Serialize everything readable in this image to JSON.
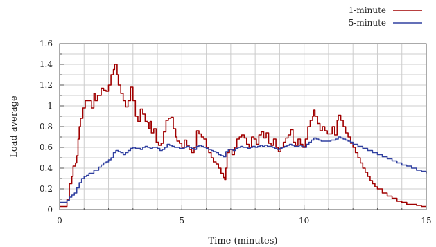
{
  "chart_data": {
    "type": "line",
    "title": "",
    "xlabel": "Time (minutes)",
    "ylabel": "Load average",
    "xlim": [
      0,
      15
    ],
    "ylim": [
      0,
      1.6
    ],
    "xticks": [
      0,
      5,
      10,
      15
    ],
    "xtick_labels": [
      "0",
      "5",
      "10",
      "15"
    ],
    "yticks": [
      0,
      0.2,
      0.4,
      0.6,
      0.8,
      1.0,
      1.2,
      1.4,
      1.6
    ],
    "ytick_labels": [
      "0",
      "0.2",
      "0.4",
      "0.6",
      "0.8",
      "1",
      "1.2",
      "1.4",
      "1.6"
    ],
    "minor_x_step": 1,
    "minor_y_step": 0.1,
    "grid": true,
    "legend_position": "top-right",
    "series": [
      {
        "name": "1-minute",
        "color": "#a00000",
        "points": [
          [
            0.0,
            0.03
          ],
          [
            0.25,
            0.03
          ],
          [
            0.3,
            0.1
          ],
          [
            0.4,
            0.25
          ],
          [
            0.5,
            0.32
          ],
          [
            0.55,
            0.42
          ],
          [
            0.65,
            0.45
          ],
          [
            0.7,
            0.52
          ],
          [
            0.75,
            0.68
          ],
          [
            0.8,
            0.8
          ],
          [
            0.85,
            0.88
          ],
          [
            0.95,
            0.98
          ],
          [
            1.05,
            1.05
          ],
          [
            1.25,
            1.05
          ],
          [
            1.3,
            0.98
          ],
          [
            1.4,
            1.12
          ],
          [
            1.45,
            1.05
          ],
          [
            1.55,
            1.1
          ],
          [
            1.65,
            1.1
          ],
          [
            1.7,
            1.17
          ],
          [
            1.8,
            1.15
          ],
          [
            1.9,
            1.14
          ],
          [
            2.0,
            1.2
          ],
          [
            2.1,
            1.3
          ],
          [
            2.2,
            1.35
          ],
          [
            2.25,
            1.4
          ],
          [
            2.3,
            1.4
          ],
          [
            2.35,
            1.3
          ],
          [
            2.4,
            1.2
          ],
          [
            2.5,
            1.12
          ],
          [
            2.6,
            1.05
          ],
          [
            2.7,
            0.99
          ],
          [
            2.8,
            1.05
          ],
          [
            2.9,
            1.18
          ],
          [
            3.0,
            1.05
          ],
          [
            3.1,
            0.9
          ],
          [
            3.2,
            0.85
          ],
          [
            3.3,
            0.97
          ],
          [
            3.4,
            0.92
          ],
          [
            3.5,
            0.85
          ],
          [
            3.6,
            0.84
          ],
          [
            3.65,
            0.78
          ],
          [
            3.7,
            0.85
          ],
          [
            3.75,
            0.74
          ],
          [
            3.85,
            0.78
          ],
          [
            3.95,
            0.65
          ],
          [
            4.05,
            0.62
          ],
          [
            4.15,
            0.64
          ],
          [
            4.25,
            0.75
          ],
          [
            4.35,
            0.86
          ],
          [
            4.45,
            0.88
          ],
          [
            4.55,
            0.89
          ],
          [
            4.65,
            0.78
          ],
          [
            4.75,
            0.7
          ],
          [
            4.8,
            0.66
          ],
          [
            4.9,
            0.64
          ],
          [
            5.0,
            0.6
          ],
          [
            5.1,
            0.67
          ],
          [
            5.2,
            0.62
          ],
          [
            5.3,
            0.58
          ],
          [
            5.4,
            0.55
          ],
          [
            5.5,
            0.6
          ],
          [
            5.6,
            0.76
          ],
          [
            5.7,
            0.73
          ],
          [
            5.8,
            0.7
          ],
          [
            5.9,
            0.68
          ],
          [
            6.0,
            0.6
          ],
          [
            6.1,
            0.55
          ],
          [
            6.2,
            0.5
          ],
          [
            6.3,
            0.46
          ],
          [
            6.4,
            0.44
          ],
          [
            6.5,
            0.4
          ],
          [
            6.6,
            0.35
          ],
          [
            6.7,
            0.31
          ],
          [
            6.75,
            0.29
          ],
          [
            6.8,
            0.4
          ],
          [
            6.85,
            0.55
          ],
          [
            6.95,
            0.58
          ],
          [
            7.05,
            0.53
          ],
          [
            7.15,
            0.6
          ],
          [
            7.25,
            0.68
          ],
          [
            7.35,
            0.7
          ],
          [
            7.45,
            0.72
          ],
          [
            7.55,
            0.69
          ],
          [
            7.65,
            0.63
          ],
          [
            7.75,
            0.6
          ],
          [
            7.85,
            0.7
          ],
          [
            7.95,
            0.68
          ],
          [
            8.05,
            0.63
          ],
          [
            8.15,
            0.72
          ],
          [
            8.25,
            0.75
          ],
          [
            8.35,
            0.69
          ],
          [
            8.45,
            0.74
          ],
          [
            8.55,
            0.64
          ],
          [
            8.65,
            0.62
          ],
          [
            8.75,
            0.68
          ],
          [
            8.85,
            0.6
          ],
          [
            8.95,
            0.56
          ],
          [
            9.05,
            0.6
          ],
          [
            9.15,
            0.65
          ],
          [
            9.25,
            0.69
          ],
          [
            9.35,
            0.72
          ],
          [
            9.45,
            0.77
          ],
          [
            9.55,
            0.65
          ],
          [
            9.65,
            0.62
          ],
          [
            9.75,
            0.68
          ],
          [
            9.85,
            0.63
          ],
          [
            9.95,
            0.6
          ],
          [
            10.05,
            0.68
          ],
          [
            10.15,
            0.8
          ],
          [
            10.25,
            0.86
          ],
          [
            10.35,
            0.9
          ],
          [
            10.4,
            0.96
          ],
          [
            10.45,
            0.9
          ],
          [
            10.55,
            0.83
          ],
          [
            10.65,
            0.76
          ],
          [
            10.75,
            0.8
          ],
          [
            10.85,
            0.76
          ],
          [
            10.95,
            0.73
          ],
          [
            11.05,
            0.73
          ],
          [
            11.15,
            0.8
          ],
          [
            11.25,
            0.72
          ],
          [
            11.35,
            0.86
          ],
          [
            11.4,
            0.91
          ],
          [
            11.5,
            0.86
          ],
          [
            11.6,
            0.8
          ],
          [
            11.7,
            0.74
          ],
          [
            11.8,
            0.7
          ],
          [
            11.9,
            0.64
          ],
          [
            12.0,
            0.6
          ],
          [
            12.1,
            0.55
          ],
          [
            12.2,
            0.5
          ],
          [
            12.3,
            0.45
          ],
          [
            12.4,
            0.4
          ],
          [
            12.5,
            0.36
          ],
          [
            12.6,
            0.32
          ],
          [
            12.7,
            0.28
          ],
          [
            12.8,
            0.25
          ],
          [
            12.9,
            0.22
          ],
          [
            13.0,
            0.2
          ],
          [
            13.2,
            0.16
          ],
          [
            13.4,
            0.13
          ],
          [
            13.6,
            0.11
          ],
          [
            13.8,
            0.08
          ],
          [
            14.0,
            0.07
          ],
          [
            14.2,
            0.05
          ],
          [
            14.4,
            0.05
          ],
          [
            14.6,
            0.04
          ],
          [
            14.8,
            0.03
          ],
          [
            15.0,
            0.03
          ]
        ]
      },
      {
        "name": "5-minute",
        "color": "#3040a0",
        "points": [
          [
            0.0,
            0.07
          ],
          [
            0.25,
            0.07
          ],
          [
            0.3,
            0.09
          ],
          [
            0.4,
            0.12
          ],
          [
            0.5,
            0.14
          ],
          [
            0.6,
            0.16
          ],
          [
            0.7,
            0.21
          ],
          [
            0.8,
            0.26
          ],
          [
            0.9,
            0.3
          ],
          [
            1.0,
            0.32
          ],
          [
            1.1,
            0.33
          ],
          [
            1.2,
            0.35
          ],
          [
            1.3,
            0.35
          ],
          [
            1.4,
            0.38
          ],
          [
            1.5,
            0.38
          ],
          [
            1.6,
            0.41
          ],
          [
            1.7,
            0.43
          ],
          [
            1.8,
            0.45
          ],
          [
            1.9,
            0.46
          ],
          [
            2.0,
            0.48
          ],
          [
            2.1,
            0.5
          ],
          [
            2.2,
            0.55
          ],
          [
            2.3,
            0.57
          ],
          [
            2.4,
            0.56
          ],
          [
            2.5,
            0.55
          ],
          [
            2.6,
            0.53
          ],
          [
            2.7,
            0.55
          ],
          [
            2.8,
            0.57
          ],
          [
            2.9,
            0.59
          ],
          [
            3.0,
            0.6
          ],
          [
            3.1,
            0.59
          ],
          [
            3.2,
            0.59
          ],
          [
            3.3,
            0.58
          ],
          [
            3.4,
            0.6
          ],
          [
            3.5,
            0.61
          ],
          [
            3.6,
            0.6
          ],
          [
            3.7,
            0.59
          ],
          [
            3.8,
            0.6
          ],
          [
            3.9,
            0.6
          ],
          [
            4.0,
            0.59
          ],
          [
            4.1,
            0.57
          ],
          [
            4.2,
            0.58
          ],
          [
            4.3,
            0.6
          ],
          [
            4.4,
            0.63
          ],
          [
            4.5,
            0.62
          ],
          [
            4.6,
            0.61
          ],
          [
            4.7,
            0.6
          ],
          [
            4.8,
            0.6
          ],
          [
            4.9,
            0.59
          ],
          [
            5.0,
            0.59
          ],
          [
            5.1,
            0.6
          ],
          [
            5.2,
            0.61
          ],
          [
            5.3,
            0.6
          ],
          [
            5.4,
            0.59
          ],
          [
            5.5,
            0.58
          ],
          [
            5.6,
            0.61
          ],
          [
            5.7,
            0.62
          ],
          [
            5.8,
            0.61
          ],
          [
            5.9,
            0.6
          ],
          [
            6.0,
            0.59
          ],
          [
            6.1,
            0.58
          ],
          [
            6.2,
            0.57
          ],
          [
            6.3,
            0.56
          ],
          [
            6.4,
            0.55
          ],
          [
            6.5,
            0.53
          ],
          [
            6.6,
            0.52
          ],
          [
            6.7,
            0.51
          ],
          [
            6.8,
            0.56
          ],
          [
            6.9,
            0.58
          ],
          [
            7.0,
            0.58
          ],
          [
            7.1,
            0.57
          ],
          [
            7.2,
            0.59
          ],
          [
            7.3,
            0.6
          ],
          [
            7.4,
            0.61
          ],
          [
            7.5,
            0.6
          ],
          [
            7.6,
            0.6
          ],
          [
            7.7,
            0.59
          ],
          [
            7.8,
            0.6
          ],
          [
            7.9,
            0.61
          ],
          [
            8.0,
            0.6
          ],
          [
            8.1,
            0.61
          ],
          [
            8.2,
            0.62
          ],
          [
            8.3,
            0.61
          ],
          [
            8.4,
            0.62
          ],
          [
            8.5,
            0.61
          ],
          [
            8.6,
            0.61
          ],
          [
            8.7,
            0.6
          ],
          [
            8.8,
            0.59
          ],
          [
            8.9,
            0.58
          ],
          [
            9.0,
            0.59
          ],
          [
            9.1,
            0.6
          ],
          [
            9.2,
            0.61
          ],
          [
            9.3,
            0.62
          ],
          [
            9.4,
            0.63
          ],
          [
            9.5,
            0.62
          ],
          [
            9.6,
            0.61
          ],
          [
            9.7,
            0.61
          ],
          [
            9.8,
            0.62
          ],
          [
            9.9,
            0.61
          ],
          [
            10.0,
            0.6
          ],
          [
            10.1,
            0.63
          ],
          [
            10.2,
            0.65
          ],
          [
            10.3,
            0.67
          ],
          [
            10.4,
            0.69
          ],
          [
            10.5,
            0.68
          ],
          [
            10.6,
            0.67
          ],
          [
            10.7,
            0.66
          ],
          [
            10.8,
            0.66
          ],
          [
            10.9,
            0.66
          ],
          [
            11.0,
            0.66
          ],
          [
            11.1,
            0.67
          ],
          [
            11.2,
            0.67
          ],
          [
            11.3,
            0.68
          ],
          [
            11.4,
            0.7
          ],
          [
            11.5,
            0.69
          ],
          [
            11.6,
            0.68
          ],
          [
            11.7,
            0.67
          ],
          [
            11.8,
            0.66
          ],
          [
            11.9,
            0.65
          ],
          [
            12.0,
            0.63
          ],
          [
            12.2,
            0.61
          ],
          [
            12.4,
            0.59
          ],
          [
            12.6,
            0.57
          ],
          [
            12.8,
            0.55
          ],
          [
            13.0,
            0.53
          ],
          [
            13.2,
            0.51
          ],
          [
            13.4,
            0.49
          ],
          [
            13.6,
            0.47
          ],
          [
            13.8,
            0.45
          ],
          [
            14.0,
            0.43
          ],
          [
            14.2,
            0.42
          ],
          [
            14.4,
            0.4
          ],
          [
            14.6,
            0.38
          ],
          [
            14.8,
            0.37
          ],
          [
            15.0,
            0.35
          ]
        ]
      }
    ]
  }
}
